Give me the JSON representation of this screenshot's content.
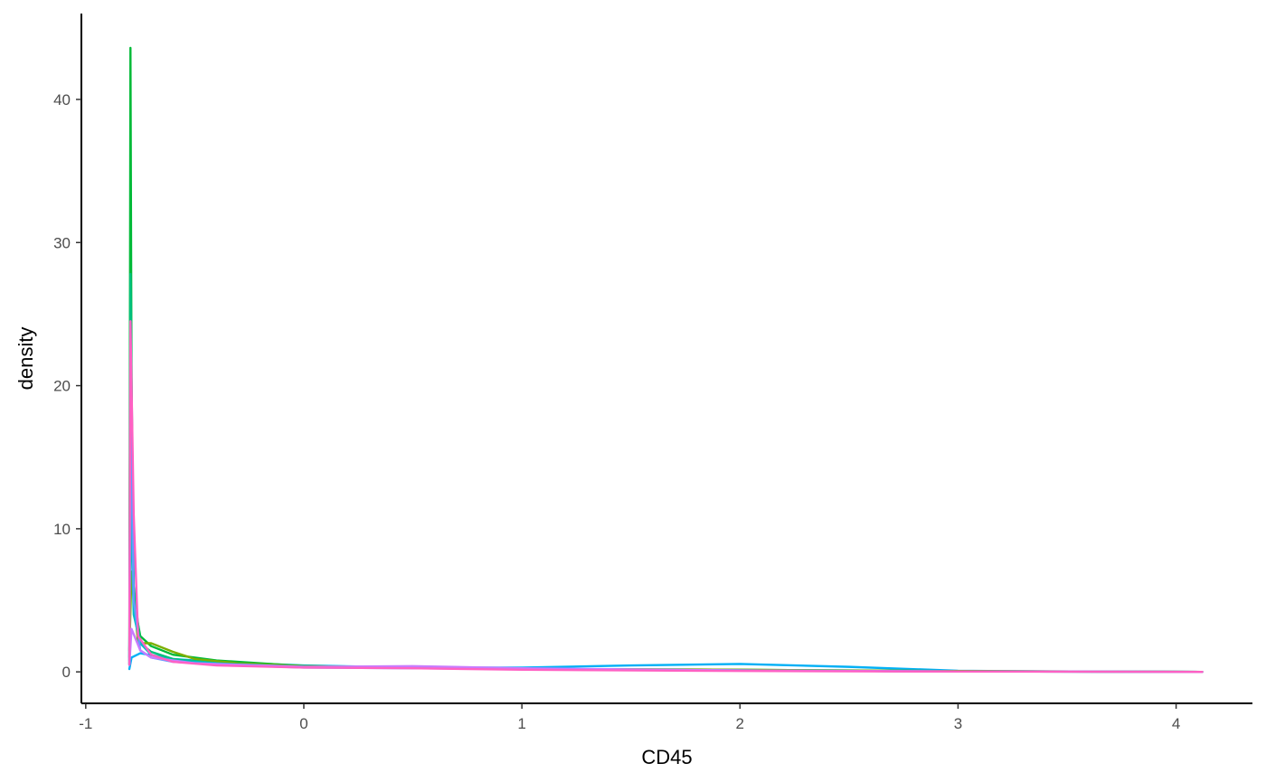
{
  "chart_data": {
    "type": "line",
    "title": "",
    "xlabel": "CD45",
    "ylabel": "density",
    "xlim": [
      -1.02,
      4.35
    ],
    "ylim": [
      -2.2,
      46
    ],
    "x_ticks": [
      -1,
      0,
      1,
      2,
      3,
      4
    ],
    "x_tick_labels": [
      "-1",
      "0",
      "1",
      "2",
      "3",
      "4"
    ],
    "y_ticks": [
      0,
      10,
      20,
      30,
      40
    ],
    "y_tick_labels": [
      "0",
      "10",
      "20",
      "30",
      "40"
    ],
    "grid": false,
    "legend": "none",
    "series": [
      {
        "color": "#00B0F6",
        "x": [
          -0.8,
          -0.79,
          -0.75,
          -0.6,
          -0.4,
          0,
          0.5,
          1.0,
          1.5,
          2.0,
          2.5,
          3.0,
          3.5,
          4.12
        ],
        "y": [
          0.2,
          1.0,
          1.3,
          0.9,
          0.7,
          0.45,
          0.3,
          0.3,
          0.45,
          0.55,
          0.35,
          0.08,
          0.02,
          0
        ]
      },
      {
        "color": "#00BA38",
        "x": [
          -0.8,
          -0.795,
          -0.79,
          -0.78,
          -0.75,
          -0.7,
          -0.6,
          -0.4,
          0,
          0.5,
          1.0,
          2.0,
          3.0,
          4.12
        ],
        "y": [
          0.5,
          43.6,
          20,
          5,
          2.5,
          1.8,
          1.2,
          0.8,
          0.4,
          0.3,
          0.2,
          0.15,
          0.05,
          0
        ]
      },
      {
        "color": "#7CAE00",
        "x": [
          -0.8,
          -0.79,
          -0.76,
          -0.7,
          -0.6,
          -0.5,
          -0.3,
          0,
          1.0,
          2.0,
          3.0,
          4.12
        ],
        "y": [
          1.5,
          7.0,
          2.0,
          2.0,
          1.4,
          0.9,
          0.6,
          0.4,
          0.2,
          0.15,
          0.05,
          0
        ]
      },
      {
        "color": "#00BF7D",
        "x": [
          -0.8,
          -0.795,
          -0.78,
          -0.75,
          -0.7,
          -0.6,
          -0.4,
          0,
          1.0,
          2.0,
          3.0,
          4.12
        ],
        "y": [
          1.0,
          27.8,
          6.0,
          2.0,
          1.4,
          0.9,
          0.6,
          0.35,
          0.2,
          0.1,
          0.03,
          0
        ]
      },
      {
        "color": "#00BFC4",
        "x": [
          -0.8,
          -0.795,
          -0.78,
          -0.75,
          -0.7,
          -0.6,
          -0.3,
          0,
          1.0,
          2.0,
          3.0,
          4.12
        ],
        "y": [
          0.8,
          12.0,
          4.0,
          2.0,
          1.2,
          0.8,
          0.5,
          0.35,
          0.2,
          0.1,
          0.03,
          0
        ]
      },
      {
        "color": "#619CFF",
        "x": [
          -0.8,
          -0.795,
          -0.78,
          -0.75,
          -0.7,
          -0.6,
          -0.3,
          0,
          1.0,
          2.0,
          3.0,
          4.12
        ],
        "y": [
          0.5,
          18.9,
          5.0,
          1.5,
          1.0,
          0.7,
          0.45,
          0.3,
          0.2,
          0.1,
          0.03,
          0
        ]
      },
      {
        "color": "#C77CFF",
        "x": [
          -0.8,
          -0.79,
          -0.75,
          -0.7,
          -0.5,
          0,
          0.5,
          1.0,
          2.0,
          3.0,
          4.12
        ],
        "y": [
          0.5,
          3.0,
          1.5,
          1.0,
          0.6,
          0.35,
          0.4,
          0.25,
          0.1,
          0.03,
          0
        ]
      },
      {
        "color": "#FF61C3",
        "x": [
          -0.8,
          -0.795,
          -0.78,
          -0.76,
          -0.7,
          -0.6,
          -0.4,
          0,
          0.5,
          1.0,
          2.0,
          3.0,
          4.12
        ],
        "y": [
          0.5,
          24.5,
          11.0,
          2.5,
          1.2,
          0.7,
          0.45,
          0.3,
          0.25,
          0.15,
          0.06,
          0.02,
          0
        ]
      }
    ]
  }
}
